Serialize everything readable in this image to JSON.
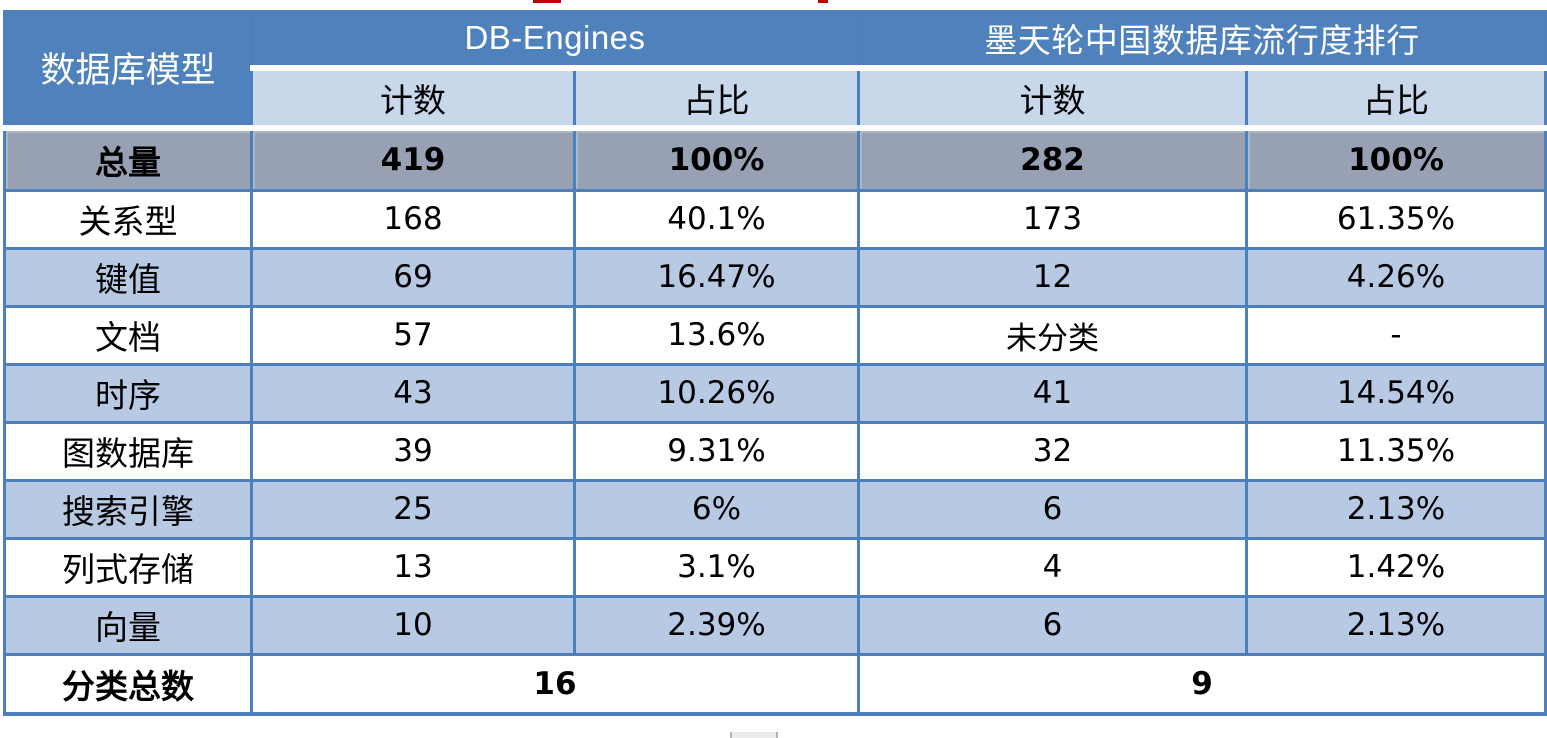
{
  "header": {
    "corner": "数据库模型",
    "group1": "DB-Engines",
    "group2": "墨天轮中国数据库流行度排行",
    "sub": [
      "计数",
      "占比",
      "计数",
      "占比"
    ]
  },
  "chart_data": {
    "type": "table",
    "columns": [
      "数据库模型",
      "DB-Engines 计数",
      "DB-Engines 占比",
      "墨天轮中国数据库流行度排行 计数",
      "墨天轮中国数据库流行度排行 占比"
    ],
    "rows": [
      [
        "总量",
        "419",
        "100%",
        "282",
        "100%"
      ],
      [
        "关系型",
        "168",
        "40.1%",
        "173",
        "61.35%"
      ],
      [
        "键值",
        "69",
        "16.47%",
        "12",
        "4.26%"
      ],
      [
        "文档",
        "57",
        "13.6%",
        "未分类",
        "-"
      ],
      [
        "时序",
        "43",
        "10.26%",
        "41",
        "14.54%"
      ],
      [
        "图数据库",
        "39",
        "9.31%",
        "32",
        "11.35%"
      ],
      [
        "搜索引擎",
        "25",
        "6%",
        "6",
        "2.13%"
      ],
      [
        "列式存储",
        "13",
        "3.1%",
        "4",
        "1.42%"
      ],
      [
        "向量",
        "10",
        "2.39%",
        "6",
        "2.13%"
      ],
      [
        "分类总数",
        "16",
        "9"
      ]
    ],
    "notes": "分类总数 row: 16 spans the two DB-Engines columns, 9 spans the two 墨天轮 columns; 总量 row is the grey bold totals row"
  },
  "colors": {
    "header_blue": "#4f81bd",
    "subheader_blue": "#c9d7eb",
    "total_row_gray": "#97a1b3",
    "alt_row_blue": "#b7c9e3",
    "border_blue": "#4d7fbc",
    "cropped_text_red": "#c00000",
    "text_black": "#000000",
    "header_text_white": "#ffffff"
  }
}
